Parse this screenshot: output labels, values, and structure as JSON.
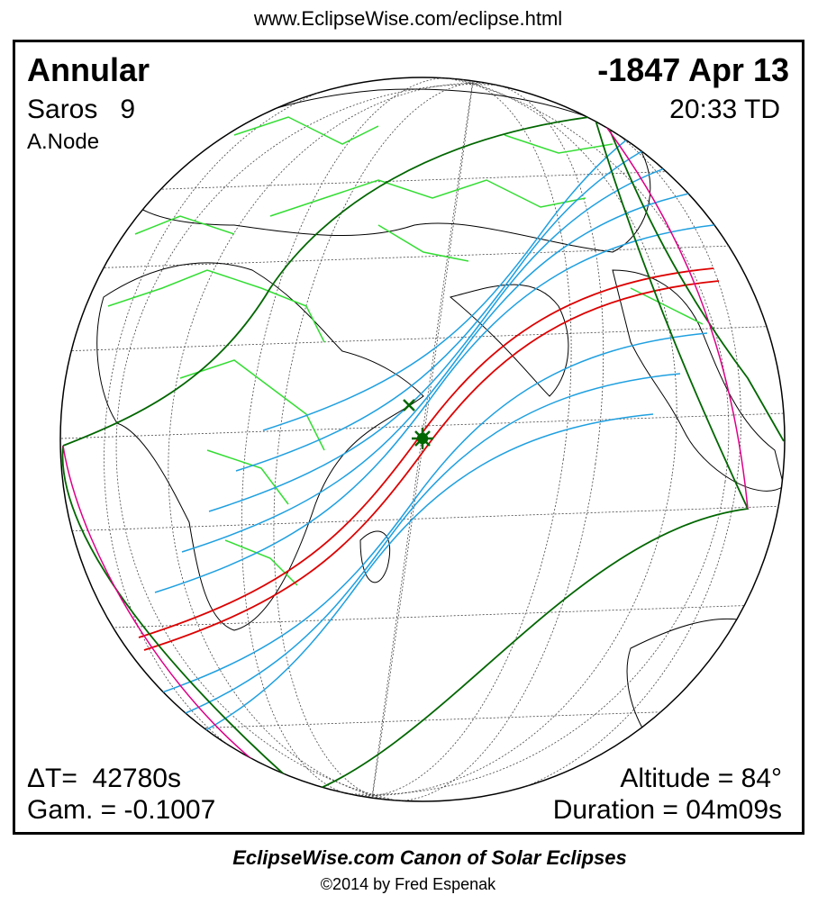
{
  "header": {
    "url": "www.EclipseWise.com/eclipse.html"
  },
  "eclipse": {
    "type": "Annular",
    "saros": "Saros   9",
    "node": "A.Node",
    "date": "-1847 Apr 13",
    "time": "20:33 TD",
    "delta_t": "ΔT=  42780s",
    "gamma": "Gam. = -0.1007",
    "altitude": "Altitude = 84°",
    "duration": "Duration = 04m09s"
  },
  "footer": {
    "title": "EclipseWise.com Canon of Solar Eclipses",
    "copyright": "©2014 by Fred Espenak"
  }
}
